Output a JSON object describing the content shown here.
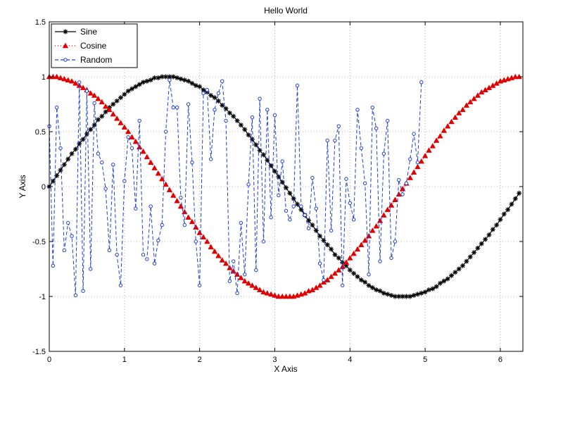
{
  "chart_data": {
    "type": "line",
    "title": "Hello World",
    "xlabel": "X Axis",
    "ylabel": "Y Axis",
    "xlim": [
      0,
      6.3
    ],
    "ylim": [
      -1.5,
      1.5
    ],
    "grid": true,
    "legend_location": "top-left",
    "x_ticks": [
      0,
      1,
      2,
      3,
      4,
      5,
      6
    ],
    "y_ticks": [
      -1.5,
      -1,
      -0.5,
      0,
      0.5,
      1,
      1.5
    ],
    "x_tick_labels": [
      "0",
      "1",
      "2",
      "3",
      "4",
      "5",
      "6"
    ],
    "y_tick_labels": [
      "-1.5",
      "-1",
      "-0.5",
      "0",
      "0.5",
      "1",
      "1.5"
    ],
    "x_start": 0,
    "x_step": 0.05,
    "series": [
      {
        "name": "Sine",
        "color": "#000000",
        "line_style": "solid",
        "marker": "asterisk",
        "values": [
          0,
          0.05,
          0.1,
          0.15,
          0.2,
          0.25,
          0.3,
          0.34,
          0.39,
          0.43,
          0.48,
          0.52,
          0.56,
          0.61,
          0.64,
          0.68,
          0.72,
          0.75,
          0.78,
          0.81,
          0.84,
          0.87,
          0.89,
          0.91,
          0.93,
          0.95,
          0.96,
          0.97,
          0.99,
          0.99,
          1,
          1,
          1,
          1,
          0.99,
          0.98,
          0.97,
          0.96,
          0.94,
          0.92,
          0.91,
          0.88,
          0.86,
          0.83,
          0.81,
          0.78,
          0.74,
          0.71,
          0.67,
          0.64,
          0.6,
          0.56,
          0.52,
          0.47,
          0.43,
          0.38,
          0.33,
          0.29,
          0.24,
          0.19,
          0.14,
          0.09,
          0.04,
          -0.01,
          -0.06,
          -0.11,
          -0.16,
          -0.21,
          -0.26,
          -0.31,
          -0.35,
          -0.4,
          -0.45,
          -0.49,
          -0.53,
          -0.57,
          -0.62,
          -0.65,
          -0.69,
          -0.72,
          -0.76,
          -0.79,
          -0.82,
          -0.85,
          -0.87,
          -0.9,
          -0.92,
          -0.94,
          -0.95,
          -0.97,
          -0.98,
          -0.99,
          -1,
          -1,
          -1,
          -1,
          -1,
          -0.99,
          -0.98,
          -0.97,
          -0.96,
          -0.94,
          -0.93,
          -0.91,
          -0.88,
          -0.86,
          -0.84,
          -0.81,
          -0.78,
          -0.75,
          -0.72,
          -0.68,
          -0.64,
          -0.6,
          -0.56,
          -0.52,
          -0.48,
          -0.44,
          -0.39,
          -0.35,
          -0.3,
          -0.25,
          -0.21,
          -0.16,
          -0.11,
          -0.06
        ]
      },
      {
        "name": "Cosine",
        "color": "#e00000",
        "line_style": "dotted",
        "marker": "triangle",
        "values": [
          1,
          1,
          1,
          0.99,
          0.98,
          0.97,
          0.96,
          0.94,
          0.92,
          0.9,
          0.88,
          0.85,
          0.83,
          0.8,
          0.77,
          0.73,
          0.7,
          0.66,
          0.62,
          0.58,
          0.54,
          0.5,
          0.45,
          0.41,
          0.36,
          0.32,
          0.27,
          0.22,
          0.17,
          0.12,
          0.07,
          0.02,
          -0.03,
          -0.08,
          -0.13,
          -0.18,
          -0.23,
          -0.28,
          -0.32,
          -0.37,
          -0.42,
          -0.46,
          -0.5,
          -0.55,
          -0.59,
          -0.63,
          -0.67,
          -0.7,
          -0.74,
          -0.77,
          -0.8,
          -0.83,
          -0.86,
          -0.88,
          -0.9,
          -0.92,
          -0.94,
          -0.96,
          -0.97,
          -0.98,
          -0.99,
          -1,
          -1,
          -1,
          -1,
          -1,
          -0.99,
          -0.98,
          -0.97,
          -0.95,
          -0.94,
          -0.92,
          -0.9,
          -0.87,
          -0.85,
          -0.82,
          -0.79,
          -0.76,
          -0.73,
          -0.69,
          -0.65,
          -0.61,
          -0.57,
          -0.53,
          -0.49,
          -0.45,
          -0.4,
          -0.36,
          -0.31,
          -0.26,
          -0.21,
          -0.17,
          -0.12,
          -0.07,
          -0.02,
          0.03,
          0.08,
          0.13,
          0.18,
          0.23,
          0.28,
          0.33,
          0.37,
          0.42,
          0.46,
          0.51,
          0.55,
          0.59,
          0.63,
          0.67,
          0.7,
          0.74,
          0.77,
          0.8,
          0.83,
          0.86,
          0.88,
          0.9,
          0.92,
          0.94,
          0.96,
          0.97,
          0.98,
          0.99,
          1,
          1
        ]
      },
      {
        "name": "Random",
        "color": "#1f3fd1",
        "line_style": "dashed",
        "marker": "circle",
        "values": [
          0.55,
          -0.72,
          0.72,
          0.35,
          -0.58,
          -0.33,
          -0.45,
          -0.99,
          0.95,
          -0.95,
          0.87,
          -0.75,
          0.76,
          0.3,
          0.22,
          -0.02,
          -0.58,
          0.2,
          -0.62,
          -0.9,
          0.05,
          0.45,
          0.35,
          -0.2,
          0.6,
          -0.62,
          -0.66,
          -0.18,
          -0.7,
          -0.49,
          -0.35,
          0.5,
          0.97,
          0.72,
          0.72,
          -0.1,
          -0.35,
          0.75,
          0.22,
          -0.5,
          -0.9,
          0.85,
          0.88,
          0.25,
          0.7,
          0.85,
          0.96,
          0.6,
          -0.86,
          -0.68,
          -0.97,
          -0.33,
          -0.8,
          0.02,
          0.63,
          -0.76,
          0.8,
          -0.5,
          0.7,
          -0.28,
          0.65,
          -0.08,
          0.23,
          -0.22,
          -0.3,
          -0.18,
          0.92,
          -0.18,
          -0.26,
          -0.38,
          0.08,
          -0.2,
          -0.7,
          -0.85,
          0.42,
          -0.4,
          0.42,
          0.55,
          -0.9,
          0.07,
          -0.15,
          -0.3,
          0.7,
          0.35,
          0.03,
          -0.8,
          0.72,
          0.53,
          -0.68,
          0.3,
          0.6,
          -0.65,
          -0.5,
          0.06,
          -0.07,
          0.03,
          0.25,
          0.48,
          0.22,
          0.95
        ]
      }
    ]
  }
}
